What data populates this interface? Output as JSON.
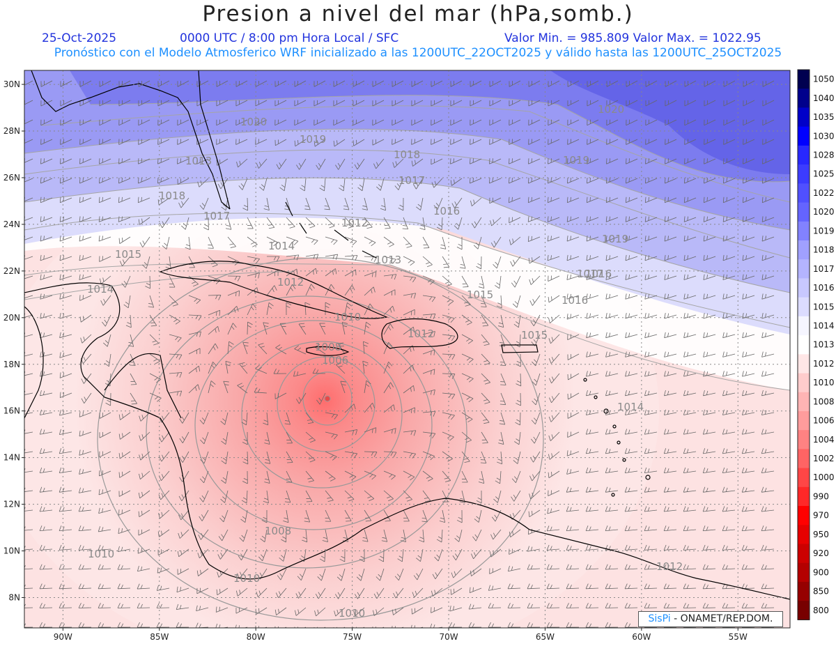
{
  "header": {
    "title": "Presion a nivel del mar (hPa,somb.)",
    "date": "25-Oct-2025",
    "time": "0000 UTC / 8:00 pm Hora Local / SFC",
    "minmax": "Valor Min. = 985.809  Valor Max. = 1022.95",
    "model": "Pronóstico con el Modelo Atmosferico WRF inicializado a las 1200UTC_22OCT2025 y válido hasta las  1200UTC_25OCT2025"
  },
  "map": {
    "lon_range": [
      -92.0,
      -52.3
    ],
    "lat_range": [
      6.7,
      30.6
    ],
    "lon_ticks": [
      "90W",
      "85W",
      "80W",
      "75W",
      "70W",
      "65W",
      "60W",
      "55W"
    ],
    "lat_ticks": [
      "30N",
      "28N",
      "26N",
      "24N",
      "22N",
      "20N",
      "18N",
      "16N",
      "14N",
      "12N",
      "10N",
      "8N"
    ],
    "low_center": {
      "lon": -76.1,
      "lat": 16.6,
      "value_hpa": 985.809
    },
    "isobar_labels": [
      "1020",
      "1019",
      "1018",
      "1017",
      "1016",
      "1015",
      "1014",
      "1013",
      "1012",
      "1010",
      "1008",
      "1006",
      "1020",
      "1019",
      "1018",
      "1017",
      "1016",
      "1015",
      "1014",
      "1012",
      "1010",
      "1010",
      "1010",
      "1008",
      "1012",
      "1017",
      "1016",
      "1015",
      "1014",
      "1013",
      "1012",
      "1019"
    ],
    "colors": {
      "low": "#f25a5a",
      "high": "#5a5ae6",
      "neutral": "#ffffff",
      "isobar": "#999999",
      "coast": "#000000"
    }
  },
  "colorbar": {
    "labels": [
      "1050",
      "1040",
      "1035",
      "1030",
      "1028",
      "1025",
      "1022",
      "1020",
      "1019",
      "1018",
      "1017",
      "1016",
      "1015",
      "1014",
      "1013",
      "1012",
      "1010",
      "1008",
      "1006",
      "1004",
      "1002",
      "1000",
      "990",
      "970",
      "950",
      "920",
      "900",
      "850",
      "800"
    ],
    "colors": [
      "#000050",
      "#00008c",
      "#0000c8",
      "#0000ff",
      "#2828ff",
      "#3c3cff",
      "#5050ff",
      "#6464ff",
      "#8282ff",
      "#a0a0ff",
      "#b4b4ff",
      "#c8c8ff",
      "#dcdcff",
      "#f5f5ff",
      "#ffffff",
      "#ffe6e6",
      "#ffcccc",
      "#ffb4b4",
      "#ff9c9c",
      "#ff8282",
      "#ff6464",
      "#ff4646",
      "#ff2828",
      "#ff0000",
      "#e60000",
      "#cc0000",
      "#b40000",
      "#960000",
      "#780000"
    ]
  },
  "credit": {
    "logo": "SisPi",
    "org": "- ONAMET/REP.DOM."
  }
}
